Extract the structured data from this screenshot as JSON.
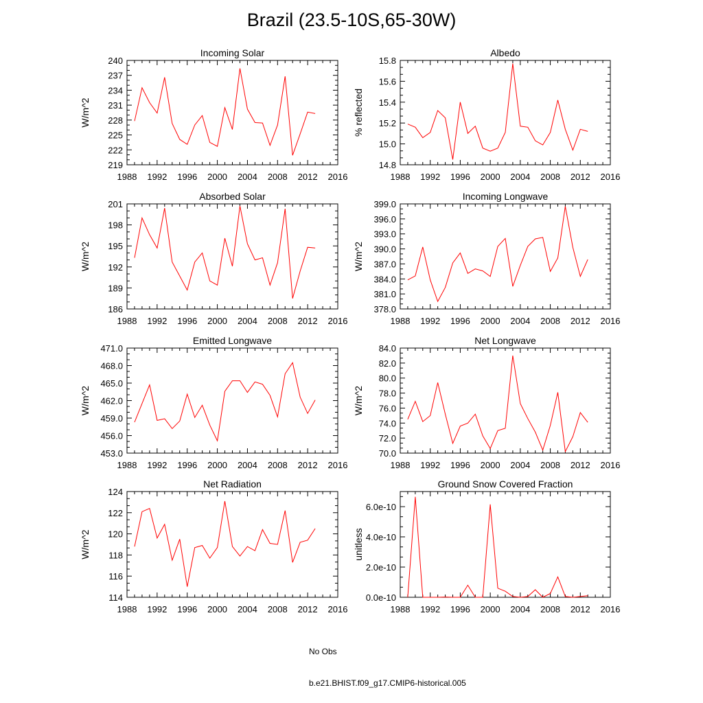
{
  "title": "Brazil (23.5-10S,65-30W)",
  "colors": {
    "model": "#ff0000",
    "obs": "#5a6aa8",
    "axis": "#000000"
  },
  "legend": [
    {
      "label": "No Obs",
      "style": "dashed",
      "color": "#5a6aa8"
    },
    {
      "label": "b.e21.BHIST.f09_g17.CMIP6-historical.005",
      "style": "solid",
      "color": "#ff0000"
    }
  ],
  "chart_data": [
    {
      "type": "line",
      "title": "Incoming Solar",
      "ylabel": "W/m^2",
      "xlim": [
        1988,
        2016
      ],
      "xticks": [
        "1988",
        "1992",
        "1996",
        "2000",
        "2004",
        "2008",
        "2012",
        "2016"
      ],
      "ylim": [
        219,
        240
      ],
      "yticks": [
        "219",
        "222",
        "225",
        "228",
        "231",
        "234",
        "237",
        "240"
      ],
      "x": [
        1989,
        1990,
        1991,
        1992,
        1993,
        1994,
        1995,
        1996,
        1997,
        1998,
        1999,
        2000,
        2001,
        2002,
        2003,
        2004,
        2005,
        2006,
        2007,
        2008,
        2009,
        2010,
        2011,
        2012,
        2013
      ],
      "values": [
        227.8,
        234.5,
        231.5,
        229.4,
        236.6,
        227.3,
        224.1,
        223.1,
        227.0,
        228.9,
        223.5,
        222.7,
        230.5,
        226.1,
        238.4,
        230.2,
        227.5,
        227.4,
        222.9,
        227.0,
        236.8,
        220.9,
        225.2,
        229.6,
        229.3
      ]
    },
    {
      "type": "line",
      "title": "Albedo",
      "ylabel": "% reflected",
      "xlim": [
        1988,
        2016
      ],
      "xticks": [
        "1988",
        "1992",
        "1996",
        "2000",
        "2004",
        "2008",
        "2012",
        "2016"
      ],
      "ylim": [
        14.8,
        15.8
      ],
      "yticks": [
        "14.8",
        "15.0",
        "15.2",
        "15.4",
        "15.6",
        "15.8"
      ],
      "x": [
        1989,
        1990,
        1991,
        1992,
        1993,
        1994,
        1995,
        1996,
        1997,
        1998,
        1999,
        2000,
        2001,
        2002,
        2003,
        2004,
        2005,
        2006,
        2007,
        2008,
        2009,
        2010,
        2011,
        2012,
        2013
      ],
      "values": [
        15.19,
        15.16,
        15.06,
        15.11,
        15.32,
        15.25,
        14.85,
        15.4,
        15.1,
        15.17,
        14.96,
        14.93,
        14.96,
        15.11,
        15.77,
        15.17,
        15.16,
        15.03,
        14.99,
        15.11,
        15.42,
        15.14,
        14.94,
        15.14,
        15.12
      ]
    },
    {
      "type": "line",
      "title": "Absorbed Solar",
      "ylabel": "W/m^2",
      "xlim": [
        1988,
        2016
      ],
      "xticks": [
        "1988",
        "1992",
        "1996",
        "2000",
        "2004",
        "2008",
        "2012",
        "2016"
      ],
      "ylim": [
        186,
        201
      ],
      "yticks": [
        "186",
        "189",
        "192",
        "195",
        "198",
        "201"
      ],
      "x": [
        1989,
        1990,
        1991,
        1992,
        1993,
        1994,
        1995,
        1996,
        1997,
        1998,
        1999,
        2000,
        2001,
        2002,
        2003,
        2004,
        2005,
        2006,
        2007,
        2008,
        2009,
        2010,
        2011,
        2012,
        2013
      ],
      "values": [
        193.3,
        199.0,
        196.6,
        194.7,
        200.4,
        192.7,
        190.7,
        188.7,
        192.7,
        194.0,
        190.0,
        189.4,
        196.1,
        192.1,
        200.7,
        195.3,
        193.0,
        193.3,
        189.4,
        192.6,
        200.3,
        187.5,
        191.4,
        194.8,
        194.7
      ]
    },
    {
      "type": "line",
      "title": "Incoming Longwave",
      "ylabel": "W/m^2",
      "xlim": [
        1988,
        2016
      ],
      "xticks": [
        "1988",
        "1992",
        "1996",
        "2000",
        "2004",
        "2008",
        "2012",
        "2016"
      ],
      "ylim": [
        378,
        399
      ],
      "yticks": [
        "378.0",
        "381.0",
        "384.0",
        "387.0",
        "390.0",
        "393.0",
        "396.0",
        "399.0"
      ],
      "x": [
        1989,
        1990,
        1991,
        1992,
        1993,
        1994,
        1995,
        1996,
        1997,
        1998,
        1999,
        2000,
        2001,
        2002,
        2003,
        2004,
        2005,
        2006,
        2007,
        2008,
        2009,
        2010,
        2011,
        2012,
        2013
      ],
      "values": [
        383.8,
        384.6,
        390.4,
        383.8,
        379.5,
        382.3,
        387.2,
        389.2,
        385.1,
        386.0,
        385.6,
        384.5,
        390.5,
        392.1,
        382.5,
        386.7,
        390.5,
        392.0,
        392.3,
        385.5,
        388.2,
        398.5,
        390.3,
        384.5,
        387.9
      ]
    },
    {
      "type": "line",
      "title": "Emitted Longwave",
      "ylabel": "W/m^2",
      "xlim": [
        1988,
        2016
      ],
      "xticks": [
        "1988",
        "1992",
        "1996",
        "2000",
        "2004",
        "2008",
        "2012",
        "2016"
      ],
      "ylim": [
        453,
        471
      ],
      "yticks": [
        "453.0",
        "456.0",
        "459.0",
        "462.0",
        "465.0",
        "468.0",
        "471.0"
      ],
      "x": [
        1989,
        1990,
        1991,
        1992,
        1993,
        1994,
        1995,
        1996,
        1997,
        1998,
        1999,
        2000,
        2001,
        2002,
        2003,
        2004,
        2005,
        2006,
        2007,
        2008,
        2009,
        2010,
        2011,
        2012,
        2013
      ],
      "values": [
        458.3,
        461.5,
        464.7,
        458.6,
        458.9,
        457.2,
        458.5,
        463.1,
        459.1,
        461.2,
        457.8,
        455.1,
        463.6,
        465.4,
        465.4,
        463.4,
        465.2,
        464.8,
        462.9,
        459.2,
        466.6,
        468.5,
        462.6,
        459.8,
        462.1
      ]
    },
    {
      "type": "line",
      "title": "Net Longwave",
      "ylabel": "W/m^2",
      "xlim": [
        1988,
        2016
      ],
      "xticks": [
        "1988",
        "1992",
        "1996",
        "2000",
        "2004",
        "2008",
        "2012",
        "2016"
      ],
      "ylim": [
        70,
        84
      ],
      "yticks": [
        "70.0",
        "72.0",
        "74.0",
        "76.0",
        "78.0",
        "80.0",
        "82.0",
        "84.0"
      ],
      "x": [
        1989,
        1990,
        1991,
        1992,
        1993,
        1994,
        1995,
        1996,
        1997,
        1998,
        1999,
        2000,
        2001,
        2002,
        2003,
        2004,
        2005,
        2006,
        2007,
        2008,
        2009,
        2010,
        2011,
        2012,
        2013
      ],
      "values": [
        74.5,
        76.9,
        74.2,
        75.0,
        79.4,
        75.2,
        71.3,
        73.6,
        74.0,
        75.2,
        72.3,
        70.6,
        73.0,
        73.3,
        83.0,
        76.6,
        74.6,
        72.8,
        70.4,
        73.7,
        78.1,
        70.2,
        72.2,
        75.4,
        74.1
      ]
    },
    {
      "type": "line",
      "title": "Net Radiation",
      "ylabel": "W/m^2",
      "xlim": [
        1988,
        2016
      ],
      "xticks": [
        "1988",
        "1992",
        "1996",
        "2000",
        "2004",
        "2008",
        "2012",
        "2016"
      ],
      "ylim": [
        114,
        124
      ],
      "yticks": [
        "114",
        "116",
        "118",
        "120",
        "122",
        "124"
      ],
      "x": [
        1989,
        1990,
        1991,
        1992,
        1993,
        1994,
        1995,
        1996,
        1997,
        1998,
        1999,
        2000,
        2001,
        2002,
        2003,
        2004,
        2005,
        2006,
        2007,
        2008,
        2009,
        2010,
        2011,
        2012,
        2013
      ],
      "values": [
        118.8,
        122.1,
        122.4,
        119.6,
        120.9,
        117.5,
        119.5,
        115.0,
        118.7,
        118.9,
        117.7,
        118.7,
        123.1,
        118.8,
        117.9,
        118.8,
        118.4,
        120.4,
        119.1,
        119.0,
        122.2,
        117.3,
        119.2,
        119.4,
        120.5
      ]
    },
    {
      "type": "line",
      "title": "Ground Snow Covered Fraction",
      "ylabel": "unitless",
      "xlim": [
        1988,
        2016
      ],
      "xticks": [
        "1988",
        "1992",
        "1996",
        "2000",
        "2004",
        "2008",
        "2012",
        "2016"
      ],
      "ylim": [
        0,
        7e-10
      ],
      "yticks": [
        "0.0e-10",
        "2.0e-10",
        "4.0e-10",
        "6.0e-10"
      ],
      "ytick_values": [
        0,
        2e-10,
        4e-10,
        6e-10
      ],
      "x": [
        1989,
        1990,
        1991,
        1992,
        1993,
        1994,
        1995,
        1996,
        1997,
        1998,
        1999,
        2000,
        2001,
        2002,
        2003,
        2004,
        2005,
        2006,
        2007,
        2008,
        2009,
        2010,
        2011,
        2012,
        2013
      ],
      "values": [
        0,
        6.65e-10,
        0,
        0,
        0,
        2e-12,
        0,
        0,
        8e-11,
        0,
        0,
        6.15e-10,
        6e-11,
        4e-11,
        5e-12,
        0,
        5e-12,
        5e-11,
        0,
        2.5e-11,
        1.35e-10,
        5e-12,
        0,
        5e-12,
        1e-11
      ]
    }
  ]
}
